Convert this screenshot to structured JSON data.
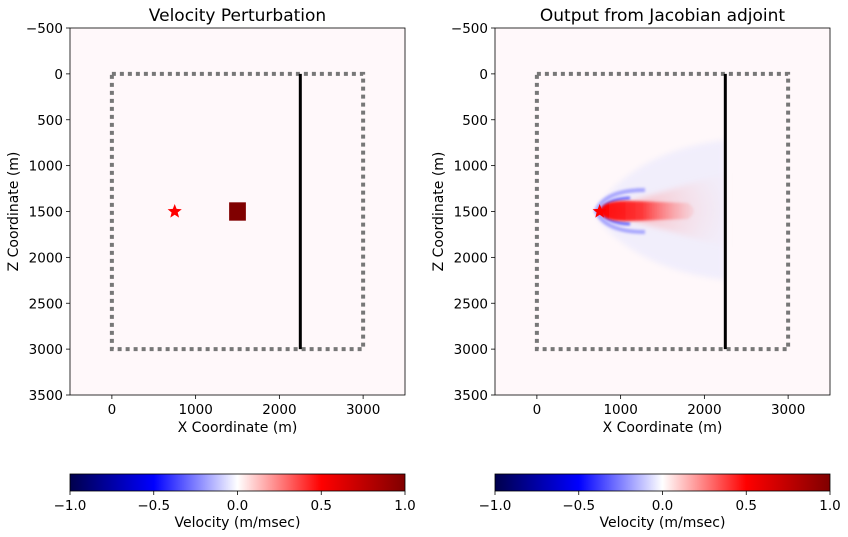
{
  "chart_data": [
    {
      "type": "heatmap",
      "title": "Velocity Perturbation",
      "xlabel": "X Coordinate (m)",
      "ylabel": "Z Coordinate (m)",
      "xlim": [
        -500,
        3500
      ],
      "ylim": [
        3500,
        -500
      ],
      "xticks": [
        0,
        1000,
        2000,
        3000
      ],
      "yticks": [
        -500,
        0,
        500,
        1000,
        1500,
        2000,
        2500,
        3000,
        3500
      ],
      "model_box": {
        "x": [
          0,
          3000
        ],
        "z": [
          0,
          3000
        ]
      },
      "receiver_line": {
        "x": 2250,
        "z": [
          0,
          3000
        ]
      },
      "source": {
        "x": 750,
        "z": 1500
      },
      "perturbation": {
        "x": [
          1400,
          1600
        ],
        "z": [
          1400,
          1600
        ],
        "value": 1.0
      },
      "colorbar": {
        "label": "Velocity (m/msec)",
        "range": [
          -1.0,
          1.0
        ],
        "ticks": [
          -1.0,
          -0.5,
          0.0,
          0.5,
          1.0
        ],
        "tick_labels": [
          "−1.0",
          "−0.5",
          "0.0",
          "0.5",
          "1.0"
        ]
      }
    },
    {
      "type": "heatmap",
      "title": "Output from Jacobian adjoint",
      "xlabel": "X Coordinate (m)",
      "ylabel": "Z Coordinate (m)",
      "xlim": [
        -500,
        3500
      ],
      "ylim": [
        3500,
        -500
      ],
      "xticks": [
        0,
        1000,
        2000,
        3000
      ],
      "yticks": [
        -500,
        0,
        500,
        1000,
        1500,
        2000,
        2500,
        3000,
        3500
      ],
      "model_box": {
        "x": [
          0,
          3000
        ],
        "z": [
          0,
          3000
        ]
      },
      "receiver_line": {
        "x": 2250,
        "z": [
          0,
          3000
        ]
      },
      "source": {
        "x": 750,
        "z": 1500
      },
      "colorbar": {
        "label": "Velocity (m/msec)",
        "range": [
          -1.0,
          1.0
        ],
        "ticks": [
          -1.0,
          -0.5,
          0.0,
          0.5,
          1.0
        ],
        "tick_labels": [
          "−1.0",
          "−0.5",
          "0.0",
          "0.5",
          "1.0"
        ]
      }
    }
  ],
  "colors": {
    "background_field": "#fff8fa",
    "box_outline": "#777777",
    "receiver_line": "#000000",
    "source_star": "#ff0000",
    "perturbation": "#800000",
    "cmap_stops": [
      "#00004c",
      "#0000ff",
      "#ffffff",
      "#ff0000",
      "#800000"
    ]
  }
}
